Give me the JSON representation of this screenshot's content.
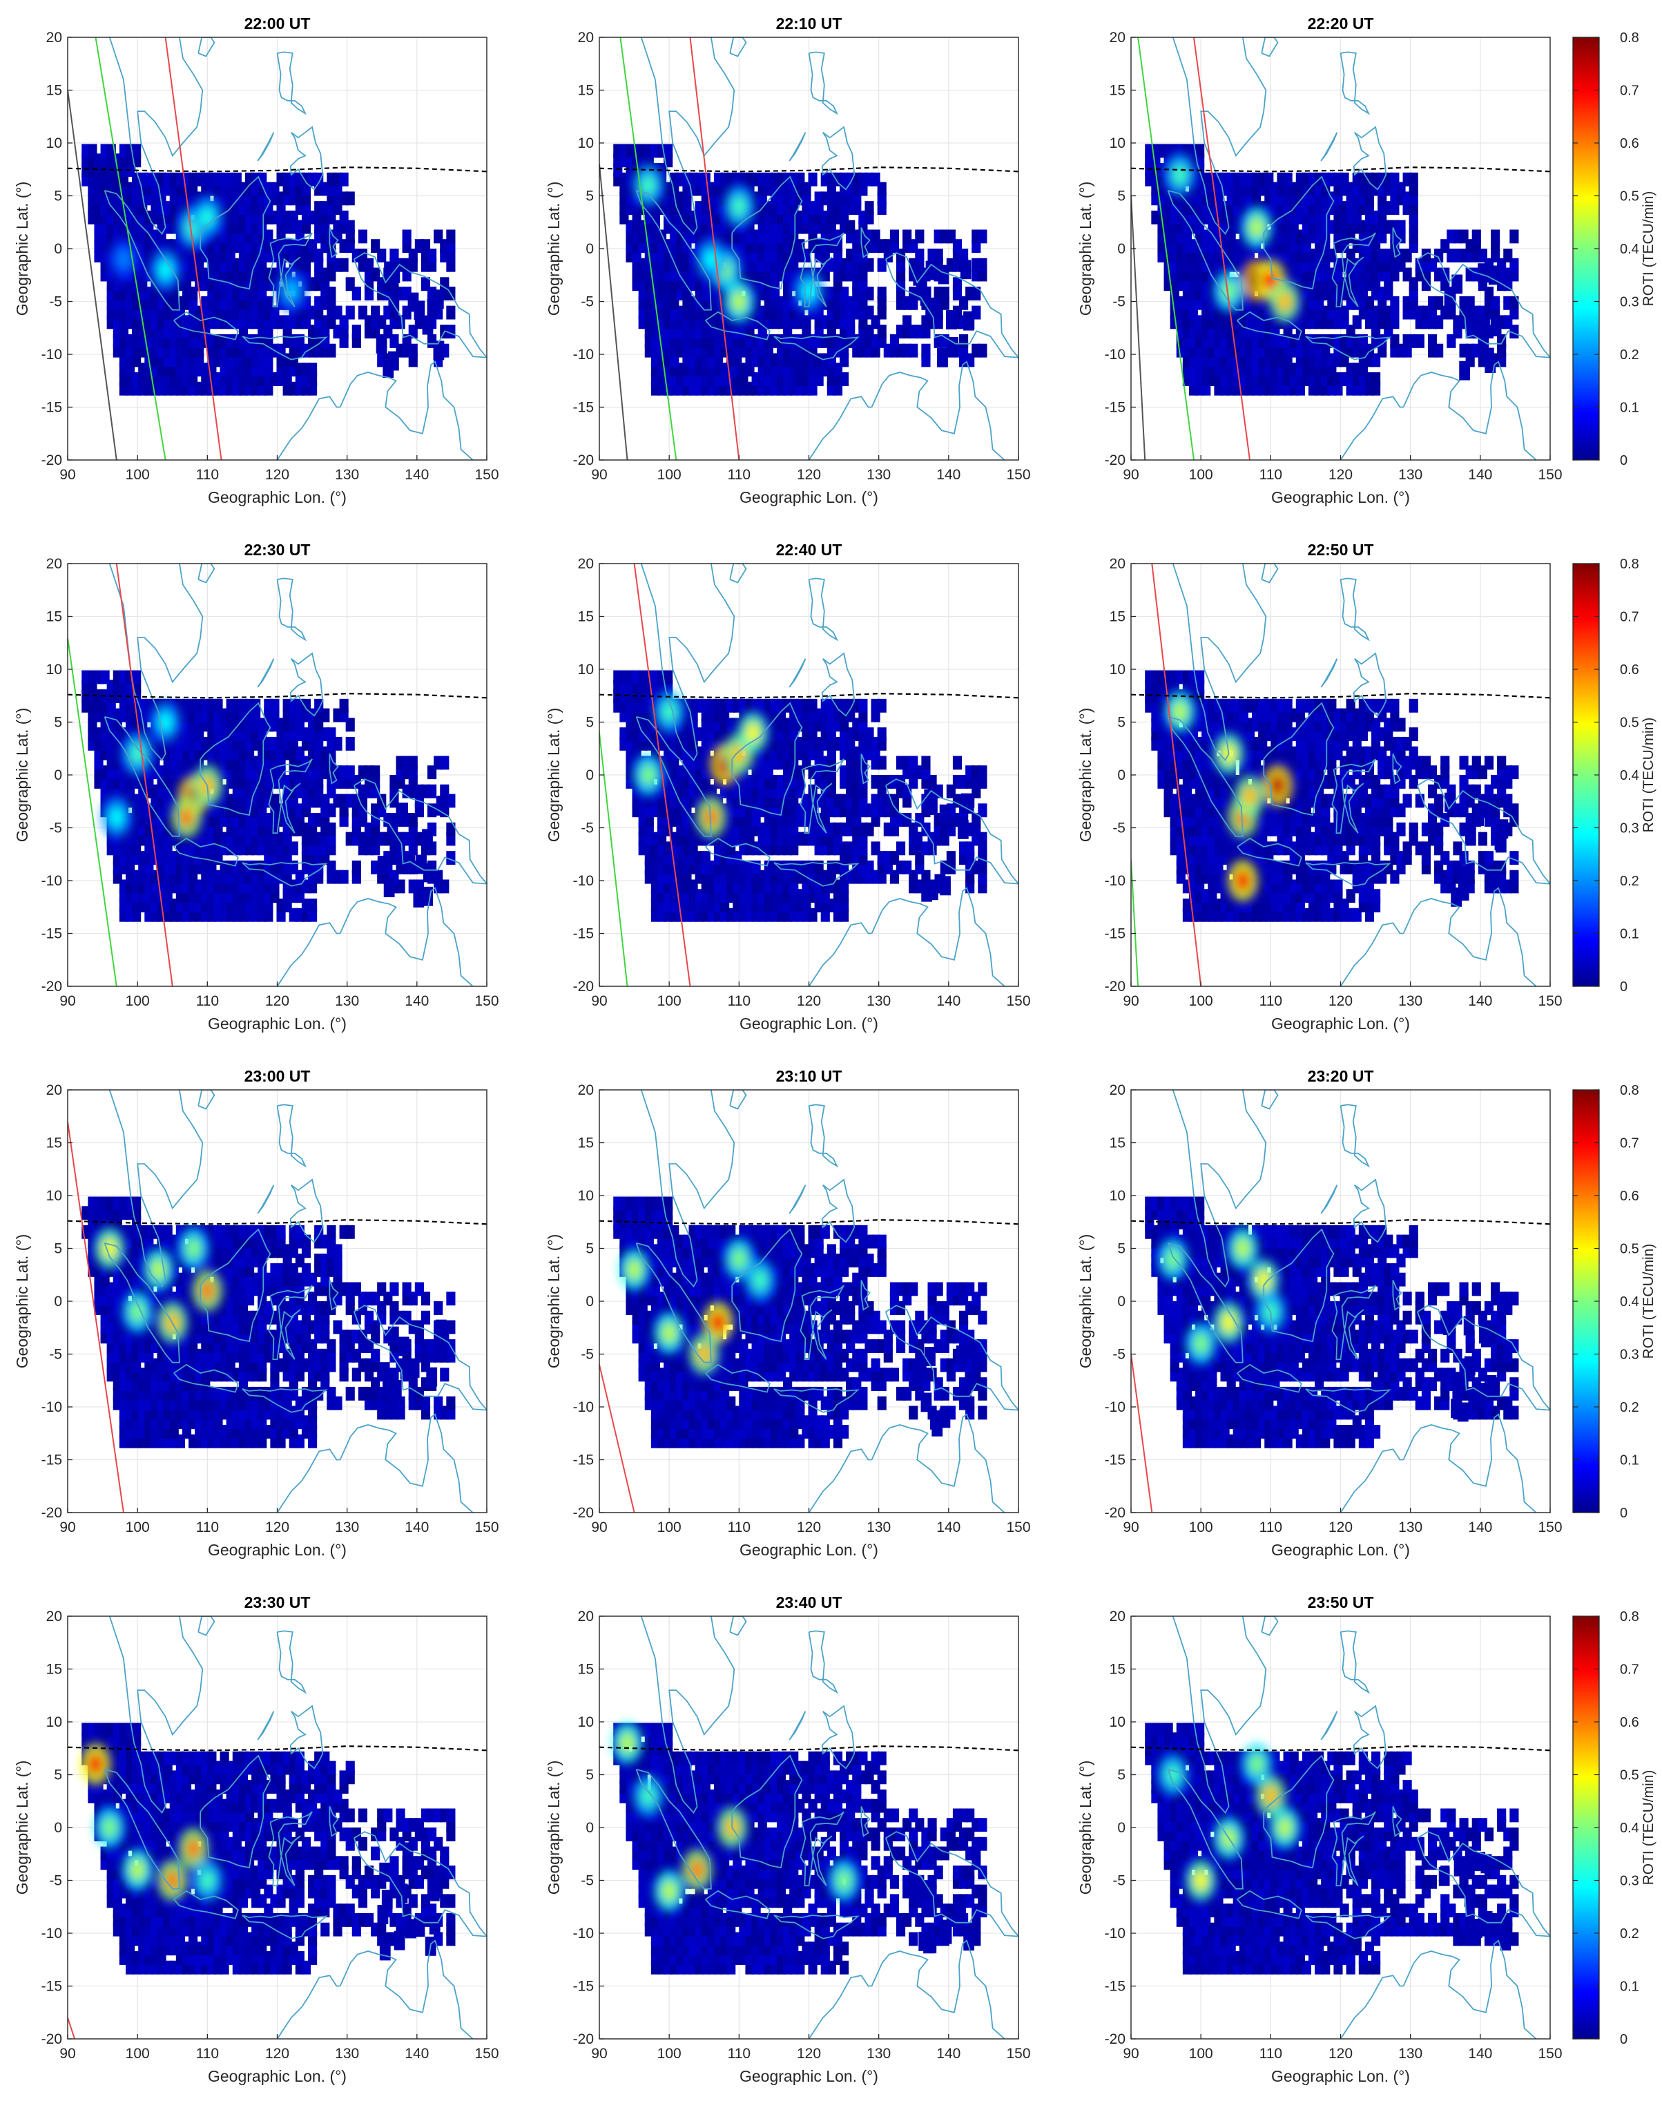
{
  "figure": {
    "panel_titles": [
      "22:00 UT",
      "22:10 UT",
      "22:20 UT",
      "22:30 UT",
      "22:40 UT",
      "22:50 UT",
      "23:00 UT",
      "23:10 UT",
      "23:20 UT",
      "23:30 UT",
      "23:40 UT",
      "23:50 UT"
    ],
    "colorbar": {
      "label": "ROTI (TECU/min)",
      "range": [
        0,
        0.8
      ],
      "ticks": [
        "0",
        "0.1",
        "0.2",
        "0.3",
        "0.4",
        "0.5",
        "0.6",
        "0.7",
        "0.8"
      ],
      "colormap": "jet"
    }
  },
  "chart_data": {
    "type": "heatmap",
    "description_layout": "4 rows x 3 columns of maps, colorbar on right of each row",
    "xlabel": "Geographic Lon. (°)",
    "ylabel": "Geographic Lat. (°)",
    "xlim": [
      90,
      150
    ],
    "ylim": [
      -20,
      20
    ],
    "xticks": [
      90,
      100,
      110,
      120,
      130,
      140,
      150
    ],
    "yticks": [
      -20,
      -15,
      -10,
      -5,
      0,
      5,
      10,
      15,
      20
    ],
    "grid": true,
    "colors": {
      "coastline": "#4aa3c9",
      "magnetic_equator": "#000000",
      "terminator_red": "#e8474b",
      "terminator_green": "#3fd63f",
      "terminator_gray": "#555555"
    },
    "magnetic_equator": [
      [
        90,
        7.6
      ],
      [
        100,
        7.4
      ],
      [
        110,
        7.3
      ],
      [
        120,
        7.4
      ],
      [
        130,
        7.7
      ],
      [
        140,
        7.6
      ],
      [
        150,
        7.3
      ]
    ],
    "panels": [
      {
        "time": "22:00 UT",
        "lines": [
          {
            "color": "red",
            "pts": [
              [
                104,
                20
              ],
              [
                112,
                -20
              ]
            ]
          },
          {
            "color": "green",
            "pts": [
              [
                94,
                20
              ],
              [
                104,
                -20
              ]
            ]
          },
          {
            "color": "gray",
            "pts": [
              [
                90,
                15
              ],
              [
                97,
                -20
              ]
            ]
          }
        ],
        "hotspots": [
          [
            108,
            2,
            0.35
          ],
          [
            104,
            -2,
            0.3
          ],
          [
            110,
            3,
            0.32
          ],
          [
            98,
            -1,
            0.2
          ],
          [
            122,
            -4,
            0.25
          ]
        ]
      },
      {
        "time": "22:10 UT",
        "lines": [
          {
            "color": "red",
            "pts": [
              [
                103,
                20
              ],
              [
                110,
                -20
              ]
            ]
          },
          {
            "color": "green",
            "pts": [
              [
                93,
                20
              ],
              [
                101,
                -20
              ]
            ]
          },
          {
            "color": "gray",
            "pts": [
              [
                90,
                8
              ],
              [
                94,
                -20
              ]
            ]
          }
        ],
        "hotspots": [
          [
            97,
            6,
            0.35
          ],
          [
            108,
            -2,
            0.4
          ],
          [
            110,
            4,
            0.35
          ],
          [
            106,
            -1,
            0.3
          ],
          [
            120,
            -4,
            0.3
          ],
          [
            110,
            -5,
            0.45
          ]
        ]
      },
      {
        "time": "22:20 UT",
        "lines": [
          {
            "color": "red",
            "pts": [
              [
                99,
                20
              ],
              [
                107,
                -20
              ]
            ]
          },
          {
            "color": "green",
            "pts": [
              [
                91,
                20
              ],
              [
                99,
                -20
              ]
            ]
          },
          {
            "color": "gray",
            "pts": [
              [
                90,
                5
              ],
              [
                92,
                -20
              ]
            ]
          }
        ],
        "hotspots": [
          [
            108,
            -3,
            0.8
          ],
          [
            110,
            -3,
            0.7
          ],
          [
            108,
            2,
            0.45
          ],
          [
            97,
            7,
            0.35
          ],
          [
            104,
            -4,
            0.4
          ],
          [
            112,
            -5,
            0.55
          ]
        ]
      },
      {
        "time": "22:30 UT",
        "lines": [
          {
            "color": "red",
            "pts": [
              [
                97,
                20
              ],
              [
                105,
                -20
              ]
            ]
          },
          {
            "color": "green",
            "pts": [
              [
                90,
                13
              ],
              [
                97,
                -20
              ]
            ]
          }
        ],
        "hotspots": [
          [
            108,
            -2,
            0.75
          ],
          [
            107,
            -4,
            0.6
          ],
          [
            110,
            -1,
            0.55
          ],
          [
            100,
            2,
            0.35
          ],
          [
            104,
            5,
            0.3
          ],
          [
            97,
            -4,
            0.3
          ]
        ]
      },
      {
        "time": "22:40 UT",
        "lines": [
          {
            "color": "red",
            "pts": [
              [
                95,
                20
              ],
              [
                103,
                -20
              ]
            ]
          },
          {
            "color": "green",
            "pts": [
              [
                90,
                4
              ],
              [
                94,
                -20
              ]
            ]
          }
        ],
        "hotspots": [
          [
            108,
            1,
            0.75
          ],
          [
            106,
            -4,
            0.6
          ],
          [
            110,
            2,
            0.55
          ],
          [
            100,
            6,
            0.35
          ],
          [
            112,
            4,
            0.5
          ],
          [
            97,
            0,
            0.4
          ]
        ]
      },
      {
        "time": "22:50 UT",
        "lines": [
          {
            "color": "red",
            "pts": [
              [
                93,
                20
              ],
              [
                100,
                -20
              ]
            ]
          },
          {
            "color": "green",
            "pts": [
              [
                90,
                -8
              ],
              [
                91,
                -20
              ]
            ]
          }
        ],
        "hotspots": [
          [
            111,
            -1,
            0.75
          ],
          [
            106,
            -4,
            0.6
          ],
          [
            104,
            2,
            0.5
          ],
          [
            97,
            6,
            0.45
          ],
          [
            107,
            -2,
            0.55
          ],
          [
            106,
            -10,
            0.7
          ]
        ]
      },
      {
        "time": "23:00 UT",
        "lines": [
          {
            "color": "red",
            "pts": [
              [
                90,
                17
              ],
              [
                98,
                -20
              ]
            ]
          }
        ],
        "hotspots": [
          [
            110,
            1,
            0.6
          ],
          [
            105,
            -2,
            0.55
          ],
          [
            96,
            5,
            0.5
          ],
          [
            103,
            3,
            0.45
          ],
          [
            100,
            -1,
            0.4
          ],
          [
            108,
            5,
            0.4
          ]
        ]
      },
      {
        "time": "23:10 UT",
        "lines": [
          {
            "color": "red",
            "pts": [
              [
                90,
                -6
              ],
              [
                95,
                -20
              ]
            ]
          }
        ],
        "hotspots": [
          [
            107,
            -2,
            0.7
          ],
          [
            105,
            -5,
            0.55
          ],
          [
            95,
            3,
            0.45
          ],
          [
            100,
            -3,
            0.45
          ],
          [
            110,
            4,
            0.4
          ],
          [
            113,
            2,
            0.35
          ]
        ]
      },
      {
        "time": "23:20 UT",
        "lines": [
          {
            "color": "red",
            "pts": [
              [
                90,
                -5
              ],
              [
                93,
                -20
              ]
            ]
          }
        ],
        "hotspots": [
          [
            104,
            -2,
            0.5
          ],
          [
            109,
            2,
            0.5
          ],
          [
            96,
            4,
            0.4
          ],
          [
            100,
            -4,
            0.4
          ],
          [
            110,
            -1,
            0.35
          ],
          [
            106,
            5,
            0.45
          ]
        ]
      },
      {
        "time": "23:30 UT",
        "lines": [
          {
            "color": "red",
            "pts": [
              [
                90,
                -18
              ],
              [
                91,
                -20
              ]
            ]
          }
        ],
        "hotspots": [
          [
            105,
            -5,
            0.6
          ],
          [
            94,
            6,
            0.7
          ],
          [
            108,
            -2,
            0.6
          ],
          [
            100,
            -4,
            0.45
          ],
          [
            96,
            0,
            0.4
          ],
          [
            110,
            -5,
            0.35
          ]
        ]
      },
      {
        "time": "23:40 UT",
        "lines": [],
        "hotspots": [
          [
            104,
            -4,
            0.6
          ],
          [
            109,
            0,
            0.55
          ],
          [
            94,
            8,
            0.45
          ],
          [
            100,
            -6,
            0.45
          ],
          [
            125,
            -5,
            0.4
          ],
          [
            97,
            3,
            0.35
          ]
        ]
      },
      {
        "time": "23:50 UT",
        "lines": [],
        "hotspots": [
          [
            100,
            -5,
            0.5
          ],
          [
            110,
            3,
            0.55
          ],
          [
            104,
            -1,
            0.45
          ],
          [
            96,
            5,
            0.35
          ],
          [
            112,
            0,
            0.45
          ],
          [
            108,
            6,
            0.4
          ]
        ]
      }
    ]
  }
}
